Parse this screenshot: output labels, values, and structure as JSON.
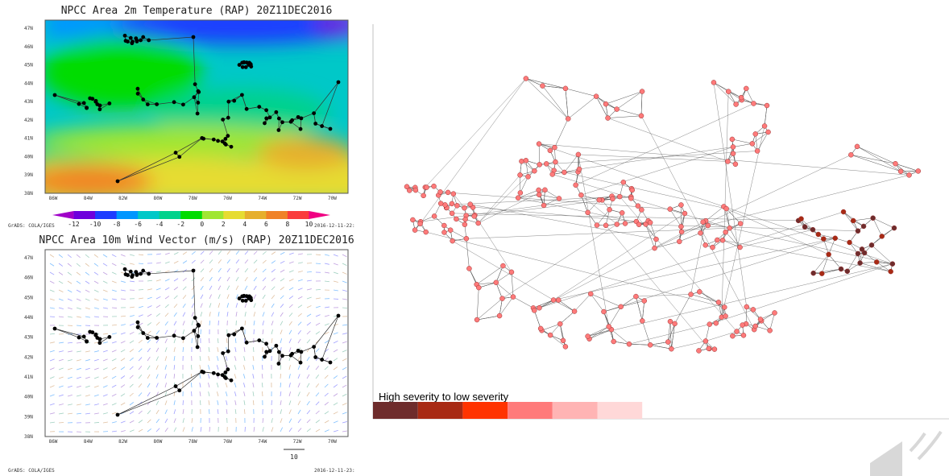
{
  "panels": [
    {
      "title": "NPCC Area 2m Temperature (RAP) 20Z11DEC2016",
      "lat_labels": [
        "38N",
        "39N",
        "40N",
        "41N",
        "42N",
        "43N",
        "44N",
        "45N",
        "46N",
        "47N"
      ],
      "lon_labels": [
        "86W",
        "84W",
        "82W",
        "80W",
        "78W",
        "76W",
        "74W",
        "72W",
        "70W"
      ],
      "colorbar": {
        "labels": [
          -12,
          -10,
          -8,
          -6,
          -4,
          -2,
          0,
          2,
          4,
          6,
          8,
          10
        ],
        "colors": [
          "#a000c8",
          "#6e00dc",
          "#1e3cff",
          "#0096ff",
          "#00c8c8",
          "#00d28c",
          "#00dc00",
          "#a0e632",
          "#e6dc32",
          "#e6af2d",
          "#f08228",
          "#fa3c3c",
          "#f00082"
        ]
      },
      "credit": "GrADS: COLA/IGES",
      "timestamp": "2016-12-11-22:"
    },
    {
      "title": "NPCC Area 10m Wind Vector (m/s) (RAP) 20Z11DEC2016",
      "lat_labels": [
        "38N",
        "39N",
        "40N",
        "41N",
        "42N",
        "43N",
        "44N",
        "45N",
        "46N",
        "47N"
      ],
      "lon_labels": [
        "86W",
        "84W",
        "82W",
        "80W",
        "78W",
        "76W",
        "74W",
        "72W",
        "70W"
      ],
      "vector_scale": "10",
      "credit": "GrADS: COLA/IGES",
      "timestamp": "2016-12-11-23:"
    }
  ],
  "network": {
    "legend_label": "High severity to low severity",
    "legend_colors": [
      "#6e2c2c",
      "#a82a14",
      "#ff3300",
      "#ff7a7a",
      "#ffb4b4",
      "#ffd8d8"
    ]
  }
}
